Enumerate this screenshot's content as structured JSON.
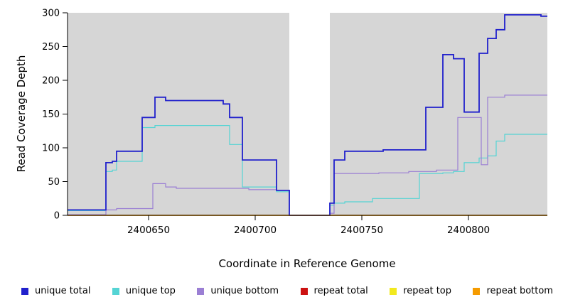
{
  "chart_data": {
    "type": "line",
    "line_style": "step",
    "title": "",
    "xlabel": "Coordinate in Reference Genome",
    "ylabel": "Read Coverage Depth",
    "xlim": [
      2400612,
      2400837
    ],
    "ylim": [
      0,
      300
    ],
    "xticks": [
      2400650,
      2400700,
      2400750,
      2400800
    ],
    "yticks": [
      0,
      50,
      100,
      150,
      200,
      250,
      300
    ],
    "plot_background": "#d6d6d6",
    "axis_color": "#000000",
    "gap_region": {
      "x0": 2400716,
      "x1": 2400735,
      "color": "#ffffff"
    },
    "legend_position": "bottom",
    "series": [
      {
        "name": "unique total",
        "color": "#2020cc",
        "width": 1.8,
        "points": [
          [
            2400612,
            8
          ],
          [
            2400630,
            78
          ],
          [
            2400633,
            80
          ],
          [
            2400635,
            95
          ],
          [
            2400647,
            145
          ],
          [
            2400653,
            175
          ],
          [
            2400658,
            170
          ],
          [
            2400685,
            165
          ],
          [
            2400688,
            145
          ],
          [
            2400694,
            82
          ],
          [
            2400710,
            37
          ],
          [
            2400716,
            0
          ],
          [
            2400735,
            18
          ],
          [
            2400737,
            82
          ],
          [
            2400742,
            95
          ],
          [
            2400760,
            97
          ],
          [
            2400780,
            160
          ],
          [
            2400788,
            238
          ],
          [
            2400793,
            232
          ],
          [
            2400798,
            153
          ],
          [
            2400805,
            240
          ],
          [
            2400809,
            262
          ],
          [
            2400813,
            275
          ],
          [
            2400817,
            297
          ],
          [
            2400834,
            295
          ]
        ]
      },
      {
        "name": "unique top",
        "color": "#55d4d4",
        "width": 1.2,
        "points": [
          [
            2400612,
            7
          ],
          [
            2400630,
            65
          ],
          [
            2400633,
            67
          ],
          [
            2400635,
            80
          ],
          [
            2400647,
            130
          ],
          [
            2400653,
            133
          ],
          [
            2400688,
            105
          ],
          [
            2400694,
            42
          ],
          [
            2400710,
            35
          ],
          [
            2400716,
            0
          ],
          [
            2400735,
            15
          ],
          [
            2400737,
            18
          ],
          [
            2400742,
            20
          ],
          [
            2400755,
            25
          ],
          [
            2400777,
            62
          ],
          [
            2400788,
            63
          ],
          [
            2400793,
            65
          ],
          [
            2400798,
            78
          ],
          [
            2400805,
            85
          ],
          [
            2400809,
            88
          ],
          [
            2400813,
            110
          ],
          [
            2400817,
            120
          ]
        ]
      },
      {
        "name": "unique bottom",
        "color": "#9b7fd4",
        "width": 1.2,
        "points": [
          [
            2400612,
            1
          ],
          [
            2400630,
            8
          ],
          [
            2400635,
            10
          ],
          [
            2400652,
            47
          ],
          [
            2400658,
            42
          ],
          [
            2400663,
            40
          ],
          [
            2400697,
            38
          ],
          [
            2400710,
            37
          ],
          [
            2400716,
            0
          ],
          [
            2400735,
            3
          ],
          [
            2400737,
            62
          ],
          [
            2400758,
            63
          ],
          [
            2400772,
            65
          ],
          [
            2400785,
            67
          ],
          [
            2400795,
            145
          ],
          [
            2400806,
            75
          ],
          [
            2400809,
            175
          ],
          [
            2400817,
            178
          ]
        ]
      },
      {
        "name": "repeat total",
        "color": "#cc1111",
        "width": 1.2,
        "points": [
          [
            2400612,
            0
          ]
        ]
      },
      {
        "name": "repeat top",
        "color": "#f2e91e",
        "width": 1.2,
        "points": [
          [
            2400612,
            0
          ]
        ]
      },
      {
        "name": "repeat bottom",
        "color": "#f59b00",
        "width": 1.5,
        "points": [
          [
            2400612,
            0
          ]
        ]
      }
    ]
  }
}
